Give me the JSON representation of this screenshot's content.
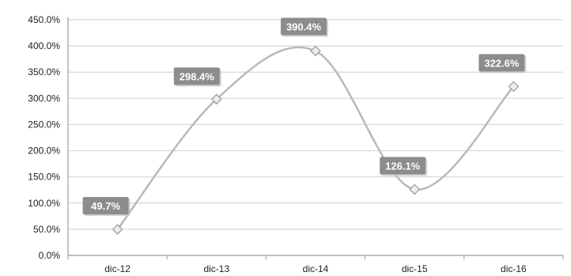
{
  "chart_data": {
    "type": "line",
    "smooth": true,
    "categories": [
      "dic-12",
      "dic-13",
      "dic-14",
      "dic-15",
      "dic-16"
    ],
    "series": [
      {
        "values": [
          49.7,
          298.4,
          390.4,
          126.1,
          322.6
        ],
        "data_labels": [
          "49.7%",
          "298.4%",
          "390.4%",
          "126.1%",
          "322.6%"
        ]
      }
    ],
    "y_ticks": [
      0,
      50,
      100,
      150,
      200,
      250,
      300,
      350,
      400,
      450
    ],
    "y_tick_labels": [
      "0.0%",
      "50.0%",
      "100.0%",
      "150.0%",
      "200.0%",
      "250.0%",
      "300.0%",
      "350.0%",
      "400.0%",
      "450.0%"
    ],
    "ylim": [
      0,
      450
    ],
    "grid": true,
    "legend": "none",
    "colors": {
      "line": "#b9b9b9",
      "marker_fill": "#ececec",
      "marker_stroke": "#9a9a9a",
      "label_bg": "#8c8c8c",
      "gridline": "#d7d7d7",
      "axis": "#9c9c9c"
    }
  }
}
